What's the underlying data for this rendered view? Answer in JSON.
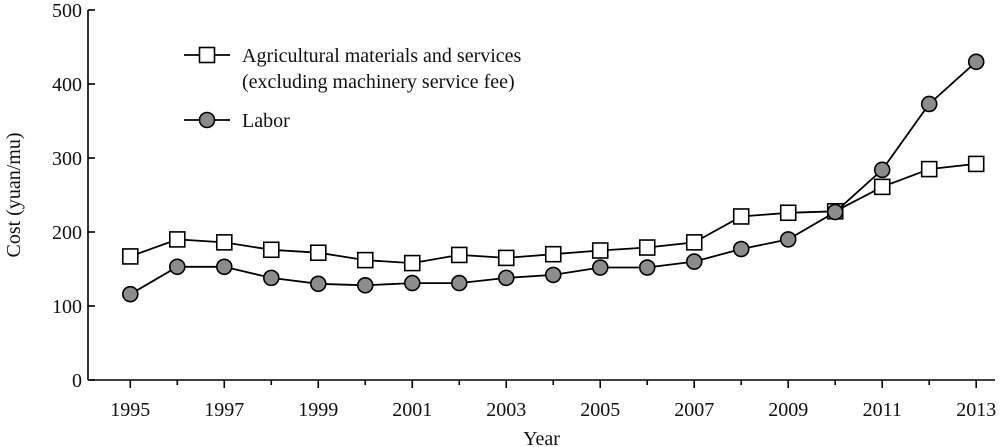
{
  "chart_data": {
    "type": "line",
    "xlabel": "Year",
    "ylabel": "Cost (yuan/mu)",
    "ylim": [
      0,
      500
    ],
    "yticks": [
      0,
      100,
      200,
      300,
      400,
      500
    ],
    "xlim": [
      1994.1,
      2013.4
    ],
    "xticks": [
      1995,
      1997,
      1999,
      2001,
      2003,
      2005,
      2007,
      2009,
      2011,
      2013
    ],
    "grid": false,
    "legend_position": "top-left",
    "series": [
      {
        "name": "Agricultural materials and services\n(excluding machinery service fee)",
        "name_lines": [
          "Agricultural materials and services",
          "(excluding machinery service fee)"
        ],
        "marker": "open-square",
        "color": "#000000",
        "fill": "#ffffff",
        "x": [
          1995,
          1996,
          1997,
          1998,
          1999,
          2000,
          2001,
          2002,
          2003,
          2004,
          2005,
          2006,
          2007,
          2008,
          2009,
          2010,
          2011,
          2012,
          2013
        ],
        "values": [
          167,
          190,
          186,
          176,
          172,
          162,
          158,
          169,
          165,
          170,
          175,
          179,
          186,
          221,
          226,
          228,
          261,
          285,
          292
        ]
      },
      {
        "name": "Labor",
        "name_lines": [
          "Labor"
        ],
        "marker": "filled-circle",
        "color": "#000000",
        "fill": "#8c8c8c",
        "x": [
          1995,
          1996,
          1997,
          1998,
          1999,
          2000,
          2001,
          2002,
          2003,
          2004,
          2005,
          2006,
          2007,
          2008,
          2009,
          2010,
          2011,
          2012,
          2013
        ],
        "values": [
          116,
          153,
          153,
          138,
          130,
          128,
          131,
          131,
          138,
          142,
          152,
          152,
          160,
          177,
          190,
          227,
          284,
          373,
          430
        ]
      }
    ]
  }
}
